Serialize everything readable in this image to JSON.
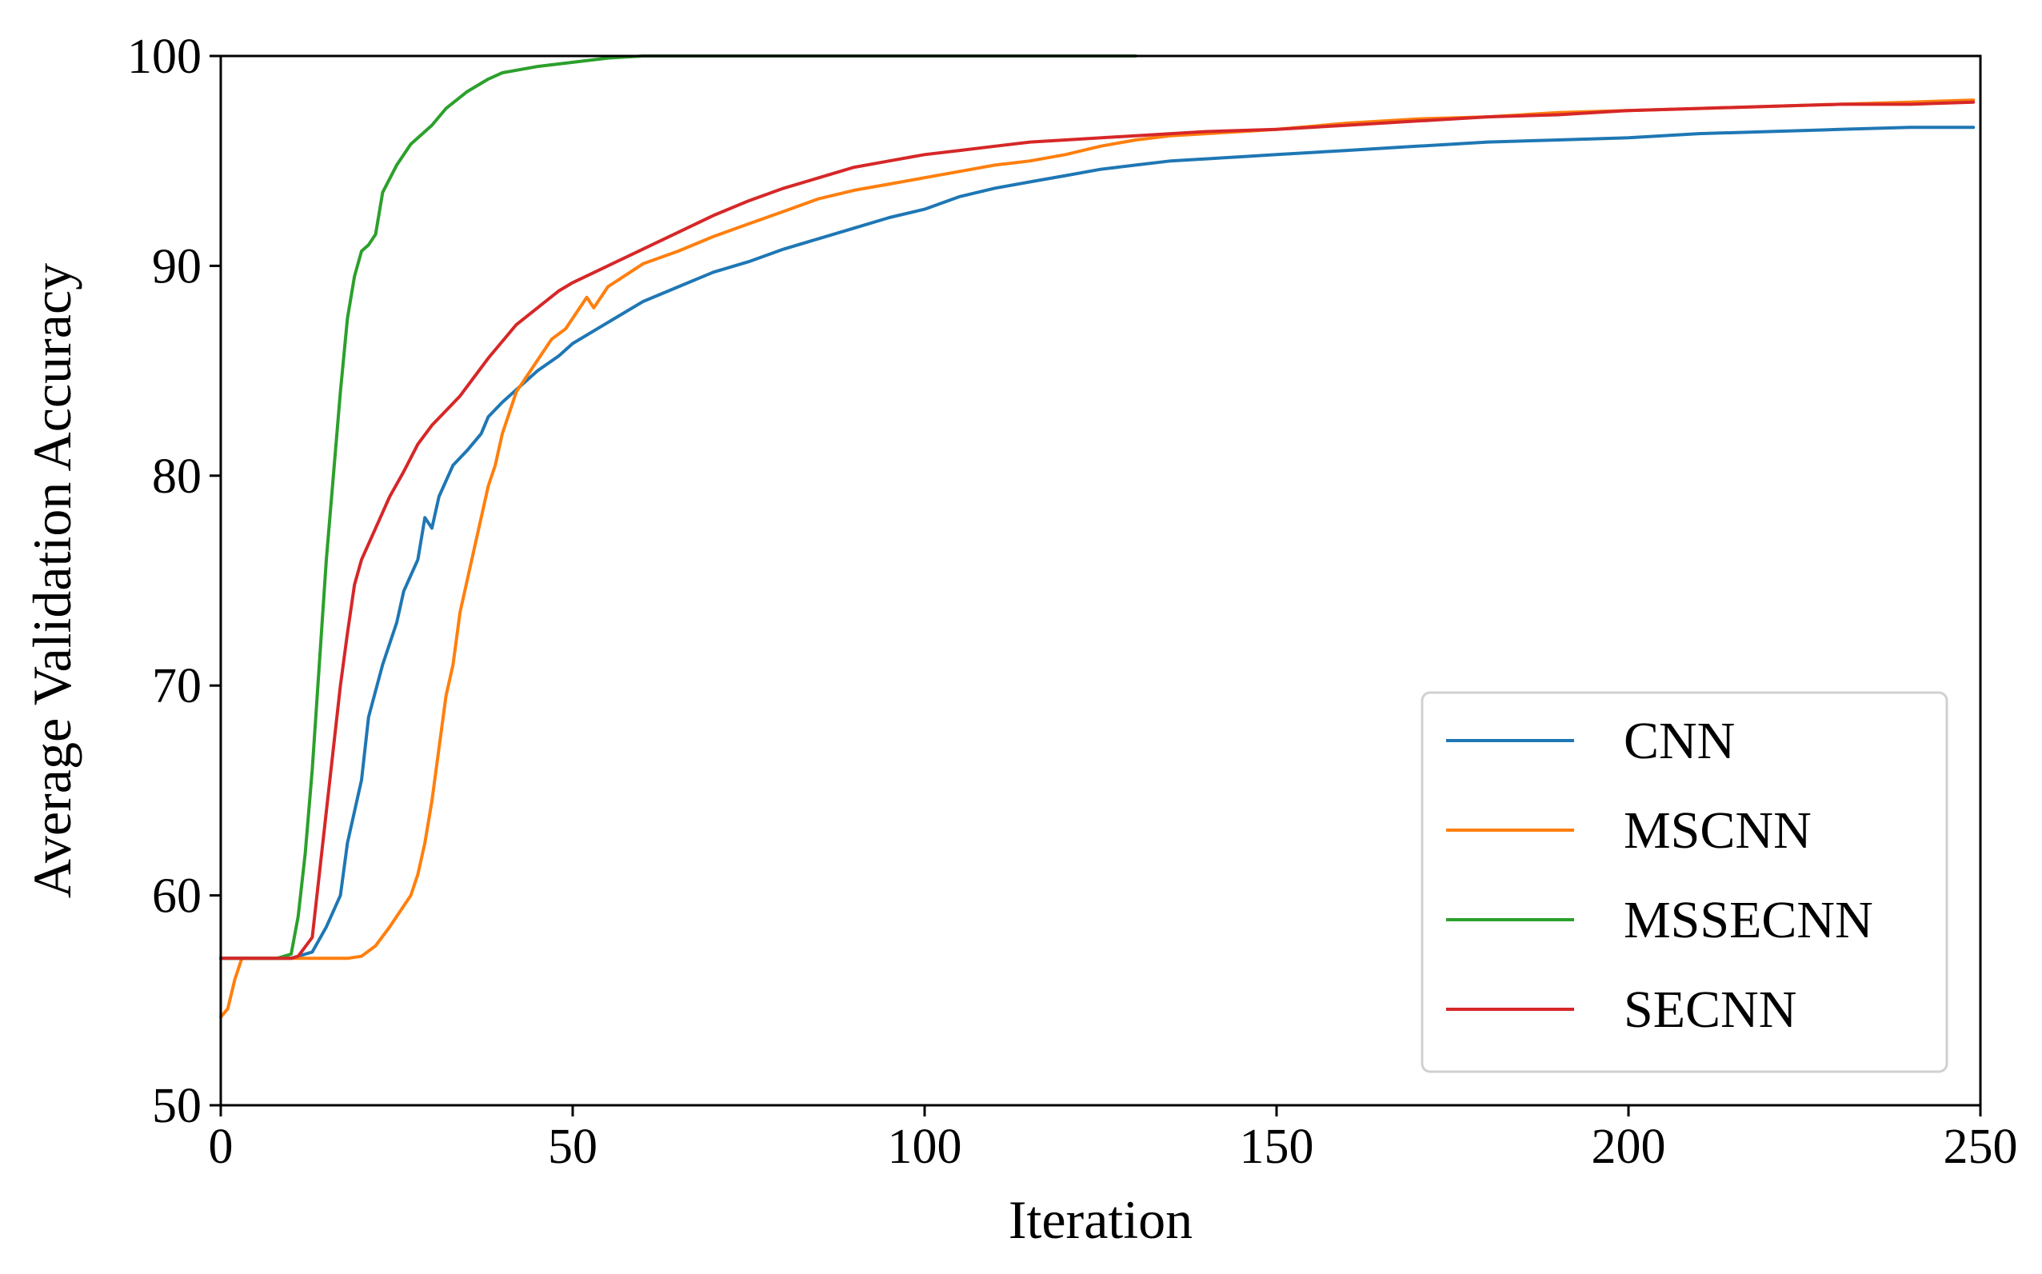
{
  "chart_data": {
    "type": "line",
    "title": "",
    "xlabel": "Iteration",
    "ylabel": "Average Validation Accuracy",
    "xlim": [
      0,
      250
    ],
    "ylim": [
      50,
      100
    ],
    "xticks": [
      0,
      50,
      100,
      150,
      200,
      250
    ],
    "yticks": [
      50,
      60,
      70,
      80,
      90,
      100
    ],
    "xtick_labels": [
      "0",
      "50",
      "100",
      "150",
      "200",
      "250"
    ],
    "ytick_labels": [
      "50",
      "60",
      "70",
      "80",
      "90",
      "100"
    ],
    "grid": false,
    "legend_position": "lower-right",
    "series": [
      {
        "name": "CNN",
        "color": "#1f77b4",
        "points": [
          [
            0,
            57
          ],
          [
            10,
            57
          ],
          [
            13,
            57.3
          ],
          [
            15,
            58.5
          ],
          [
            17,
            60
          ],
          [
            18,
            62.5
          ],
          [
            19,
            64
          ],
          [
            20,
            65.5
          ],
          [
            21,
            68.5
          ],
          [
            23,
            71
          ],
          [
            25,
            73
          ],
          [
            26,
            74.5
          ],
          [
            28,
            76
          ],
          [
            29,
            78
          ],
          [
            30,
            77.5
          ],
          [
            31,
            79
          ],
          [
            33,
            80.5
          ],
          [
            35,
            81.2
          ],
          [
            37,
            82
          ],
          [
            38,
            82.8
          ],
          [
            40,
            83.5
          ],
          [
            42,
            84.1
          ],
          [
            45,
            85
          ],
          [
            48,
            85.7
          ],
          [
            50,
            86.3
          ],
          [
            55,
            87.3
          ],
          [
            60,
            88.3
          ],
          [
            65,
            89
          ],
          [
            70,
            89.7
          ],
          [
            75,
            90.2
          ],
          [
            80,
            90.8
          ],
          [
            85,
            91.3
          ],
          [
            90,
            91.8
          ],
          [
            95,
            92.3
          ],
          [
            100,
            92.7
          ],
          [
            105,
            93.3
          ],
          [
            110,
            93.7
          ],
          [
            115,
            94
          ],
          [
            120,
            94.3
          ],
          [
            125,
            94.6
          ],
          [
            130,
            94.8
          ],
          [
            135,
            95
          ],
          [
            140,
            95.1
          ],
          [
            145,
            95.2
          ],
          [
            150,
            95.3
          ],
          [
            160,
            95.5
          ],
          [
            170,
            95.7
          ],
          [
            180,
            95.9
          ],
          [
            190,
            96
          ],
          [
            200,
            96.1
          ],
          [
            210,
            96.3
          ],
          [
            220,
            96.4
          ],
          [
            230,
            96.5
          ],
          [
            240,
            96.6
          ],
          [
            249,
            96.6
          ]
        ]
      },
      {
        "name": "MSCNN",
        "color": "#ff7f0e",
        "points": [
          [
            0,
            54.2
          ],
          [
            1,
            54.6
          ],
          [
            2,
            56
          ],
          [
            3,
            57
          ],
          [
            10,
            57
          ],
          [
            15,
            57
          ],
          [
            18,
            57
          ],
          [
            20,
            57.1
          ],
          [
            22,
            57.6
          ],
          [
            24,
            58.5
          ],
          [
            25,
            59
          ],
          [
            27,
            60
          ],
          [
            28,
            61
          ],
          [
            29,
            62.5
          ],
          [
            30,
            64.5
          ],
          [
            31,
            67
          ],
          [
            32,
            69.5
          ],
          [
            33,
            71
          ],
          [
            34,
            73.5
          ],
          [
            35,
            75
          ],
          [
            36,
            76.5
          ],
          [
            37,
            78
          ],
          [
            38,
            79.5
          ],
          [
            39,
            80.5
          ],
          [
            40,
            82
          ],
          [
            41,
            83
          ],
          [
            42,
            84
          ],
          [
            43,
            84.5
          ],
          [
            45,
            85.5
          ],
          [
            47,
            86.5
          ],
          [
            49,
            87
          ],
          [
            51,
            88
          ],
          [
            52,
            88.5
          ],
          [
            53,
            88
          ],
          [
            55,
            89
          ],
          [
            60,
            90.1
          ],
          [
            65,
            90.7
          ],
          [
            70,
            91.4
          ],
          [
            75,
            92
          ],
          [
            80,
            92.6
          ],
          [
            85,
            93.2
          ],
          [
            90,
            93.6
          ],
          [
            95,
            93.9
          ],
          [
            100,
            94.2
          ],
          [
            105,
            94.5
          ],
          [
            110,
            94.8
          ],
          [
            115,
            95
          ],
          [
            120,
            95.3
          ],
          [
            125,
            95.7
          ],
          [
            130,
            96
          ],
          [
            135,
            96.2
          ],
          [
            140,
            96.3
          ],
          [
            145,
            96.4
          ],
          [
            150,
            96.5
          ],
          [
            160,
            96.8
          ],
          [
            170,
            97
          ],
          [
            180,
            97.1
          ],
          [
            190,
            97.3
          ],
          [
            200,
            97.4
          ],
          [
            210,
            97.5
          ],
          [
            220,
            97.6
          ],
          [
            230,
            97.7
          ],
          [
            240,
            97.8
          ],
          [
            249,
            97.9
          ]
        ]
      },
      {
        "name": "MSSECNN",
        "color": "#2ca02c",
        "points": [
          [
            0,
            57
          ],
          [
            8,
            57
          ],
          [
            10,
            57.2
          ],
          [
            11,
            59
          ],
          [
            12,
            62
          ],
          [
            13,
            66
          ],
          [
            14,
            71
          ],
          [
            15,
            76
          ],
          [
            16,
            80
          ],
          [
            17,
            84
          ],
          [
            18,
            87.5
          ],
          [
            19,
            89.5
          ],
          [
            20,
            90.7
          ],
          [
            21,
            91
          ],
          [
            22,
            91.5
          ],
          [
            23,
            93.5
          ],
          [
            25,
            94.8
          ],
          [
            27,
            95.8
          ],
          [
            30,
            96.7
          ],
          [
            32,
            97.5
          ],
          [
            35,
            98.3
          ],
          [
            38,
            98.9
          ],
          [
            40,
            99.2
          ],
          [
            45,
            99.5
          ],
          [
            50,
            99.7
          ],
          [
            55,
            99.9
          ],
          [
            60,
            100
          ],
          [
            130,
            100
          ]
        ]
      },
      {
        "name": "SECNN",
        "color": "#d62728",
        "points": [
          [
            0,
            57
          ],
          [
            10,
            57
          ],
          [
            11,
            57.1
          ],
          [
            13,
            58
          ],
          [
            14,
            61
          ],
          [
            15,
            64
          ],
          [
            16,
            67
          ],
          [
            17,
            70
          ],
          [
            18,
            72.5
          ],
          [
            19,
            74.8
          ],
          [
            20,
            76
          ],
          [
            22,
            77.5
          ],
          [
            24,
            79
          ],
          [
            26,
            80.2
          ],
          [
            28,
            81.5
          ],
          [
            30,
            82.4
          ],
          [
            32,
            83.1
          ],
          [
            34,
            83.8
          ],
          [
            36,
            84.7
          ],
          [
            38,
            85.6
          ],
          [
            40,
            86.4
          ],
          [
            42,
            87.2
          ],
          [
            45,
            88
          ],
          [
            48,
            88.8
          ],
          [
            50,
            89.2
          ],
          [
            55,
            90
          ],
          [
            60,
            90.8
          ],
          [
            65,
            91.6
          ],
          [
            70,
            92.4
          ],
          [
            75,
            93.1
          ],
          [
            80,
            93.7
          ],
          [
            85,
            94.2
          ],
          [
            90,
            94.7
          ],
          [
            95,
            95
          ],
          [
            100,
            95.3
          ],
          [
            105,
            95.5
          ],
          [
            110,
            95.7
          ],
          [
            115,
            95.9
          ],
          [
            120,
            96
          ],
          [
            130,
            96.2
          ],
          [
            140,
            96.4
          ],
          [
            150,
            96.5
          ],
          [
            160,
            96.7
          ],
          [
            170,
            96.9
          ],
          [
            180,
            97.1
          ],
          [
            190,
            97.2
          ],
          [
            200,
            97.4
          ],
          [
            210,
            97.5
          ],
          [
            220,
            97.6
          ],
          [
            230,
            97.7
          ],
          [
            240,
            97.7
          ],
          [
            249,
            97.8
          ]
        ]
      }
    ]
  }
}
